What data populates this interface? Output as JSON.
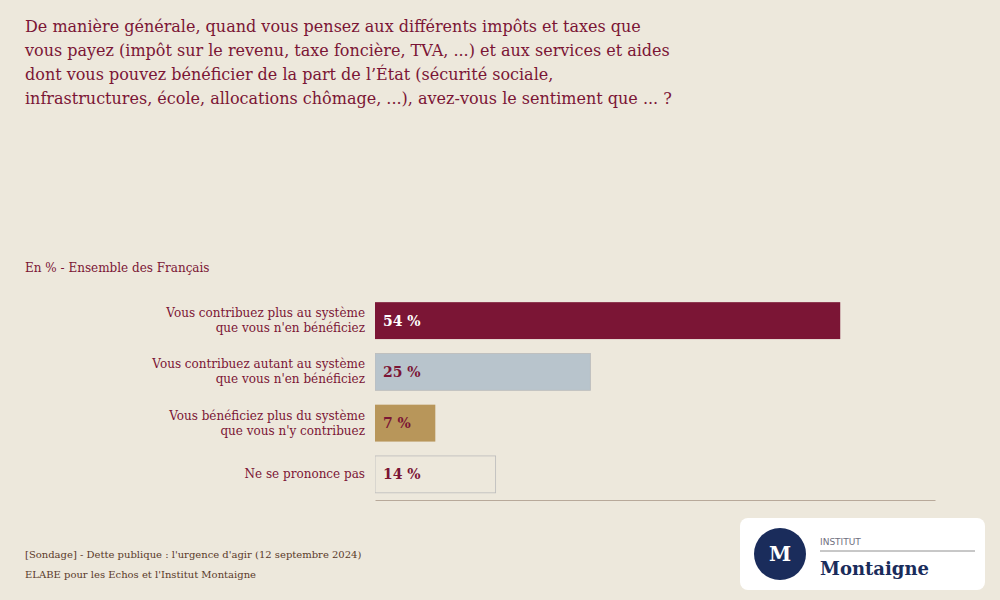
{
  "chart_data": {
    "type": "bar",
    "orientation": "horizontal",
    "title": "De manière générale, quand vous pensez aux différents impôts et taxes que\nvous payez (impôt sur le revenu, taxe foncière, TVA, ...) et aux services et aides\ndont vous pouvez bénéficier de la part de l’État (sécurité sociale,\ninfrastructures, école, allocations chômage, ...), avez-vous le sentiment que ... ?",
    "subtitle": "En % - Ensemble des Français",
    "categories": [
      "Vous contribuez plus au système\nque vous n'en bénéficiez",
      "Vous contribuez autant au système\nque vous n'en bénéficiez",
      "Vous bénéficiez plus du système\nque vous n'y contribuez",
      "Ne se prononce pas"
    ],
    "values": [
      54,
      25,
      7,
      14
    ],
    "value_labels": [
      "54 %",
      "25 %",
      "7 %",
      "14 %"
    ],
    "colors": [
      "#7b1535",
      "#b8c4cc",
      "#b8965a",
      "#ede8dc"
    ],
    "xlim": [
      0,
      65
    ],
    "data_labels": true,
    "tick_labels": false,
    "grid": false,
    "annotations": [
      "[Sondage] - Dette publique : l'urgence d'agir (12 septembre 2024)",
      "ELABE pour les Echos et l'Institut Montaigne",
      "M",
      "INSTITUT",
      "Montaigne"
    ]
  }
}
